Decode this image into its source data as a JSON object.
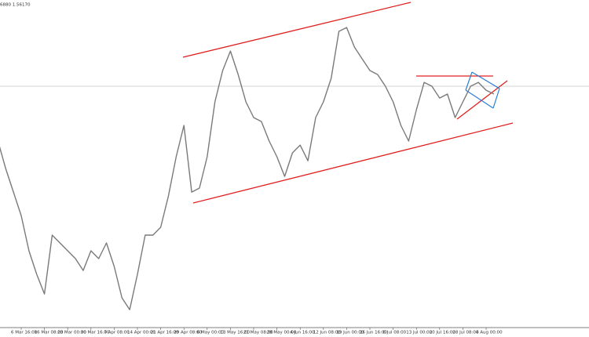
{
  "chart_data": {
    "type": "line",
    "title": "6880 1.56170",
    "categories": [
      null,
      null,
      null,
      "6 Mar 16:00",
      null,
      null,
      "16 Mar 08:00",
      null,
      null,
      "23 Mar 00:00",
      null,
      null,
      "30 Mar 16:00",
      null,
      null,
      "7 Apr 08:00",
      null,
      null,
      "14 Apr 00:00",
      null,
      null,
      "21 Apr 16:00",
      null,
      null,
      "29 Apr 08:00",
      null,
      null,
      "6 May 00:00",
      null,
      null,
      "13 May 16:00",
      null,
      null,
      "21 May 08:00",
      null,
      null,
      "28 May 00:00",
      null,
      null,
      "4 Jun 16:00",
      null,
      null,
      "12 Jun 08:00",
      null,
      null,
      "19 Jun 00:00",
      null,
      null,
      "26 Jun 16:00",
      null,
      null,
      "6 Jul 08:00",
      null,
      null,
      "13 Jul 00:00",
      null,
      null,
      "20 Jul 16:00",
      null,
      null,
      "28 Jul 08:00",
      null,
      null,
      "4 Aug 00:00",
      null
    ],
    "values": [
      1.5388,
      1.5265,
      1.516,
      1.5055,
      1.4898,
      1.4793,
      1.4705,
      1.4968,
      1.4933,
      1.4898,
      1.4863,
      1.481,
      1.4898,
      1.4863,
      1.4933,
      1.4828,
      1.4688,
      1.4635,
      1.4793,
      1.4968,
      1.4968,
      1.5003,
      1.5143,
      1.5318,
      1.5458,
      1.516,
      1.5178,
      1.5318,
      1.5563,
      1.5703,
      1.579,
      1.5685,
      1.5563,
      1.5493,
      1.5475,
      1.5388,
      1.5318,
      1.523,
      1.5335,
      1.537,
      1.53,
      1.5493,
      1.5563,
      1.5668,
      1.5878,
      1.5895,
      1.5808,
      1.5755,
      1.5703,
      1.5685,
      1.5633,
      1.5563,
      1.5458,
      1.5388,
      1.5528,
      1.565,
      1.5633,
      1.558,
      1.5598,
      1.5493,
      1.5563,
      1.5633,
      1.565,
      1.5615,
      1.5598
    ],
    "color": "#7a7a7a",
    "ylim": [
      1.4555,
      1.6018
    ]
  }
}
